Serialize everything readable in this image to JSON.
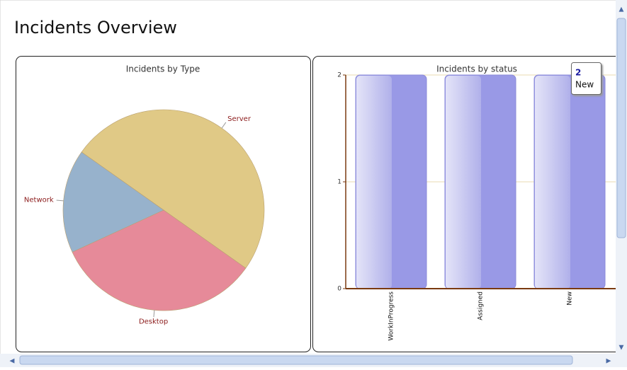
{
  "header": {
    "title": "Incidents Overview"
  },
  "chart_data": [
    {
      "type": "pie",
      "title": "Incidents by Type",
      "categories": [
        "Server",
        "Desktop",
        "Network"
      ],
      "values": [
        3,
        2,
        1
      ],
      "colors": [
        "#e0c986",
        "#e68a99",
        "#97b2cc"
      ]
    },
    {
      "type": "bar",
      "title": "Incidents by status",
      "categories": [
        "WorkInProgress",
        "Assigned",
        "New"
      ],
      "values": [
        2,
        2,
        2
      ],
      "color": "#9999e6",
      "ylim": [
        0,
        2
      ],
      "yticks": [
        0,
        1,
        2
      ],
      "grid": true,
      "tooltip": {
        "value": 2,
        "category": "New"
      }
    }
  ]
}
